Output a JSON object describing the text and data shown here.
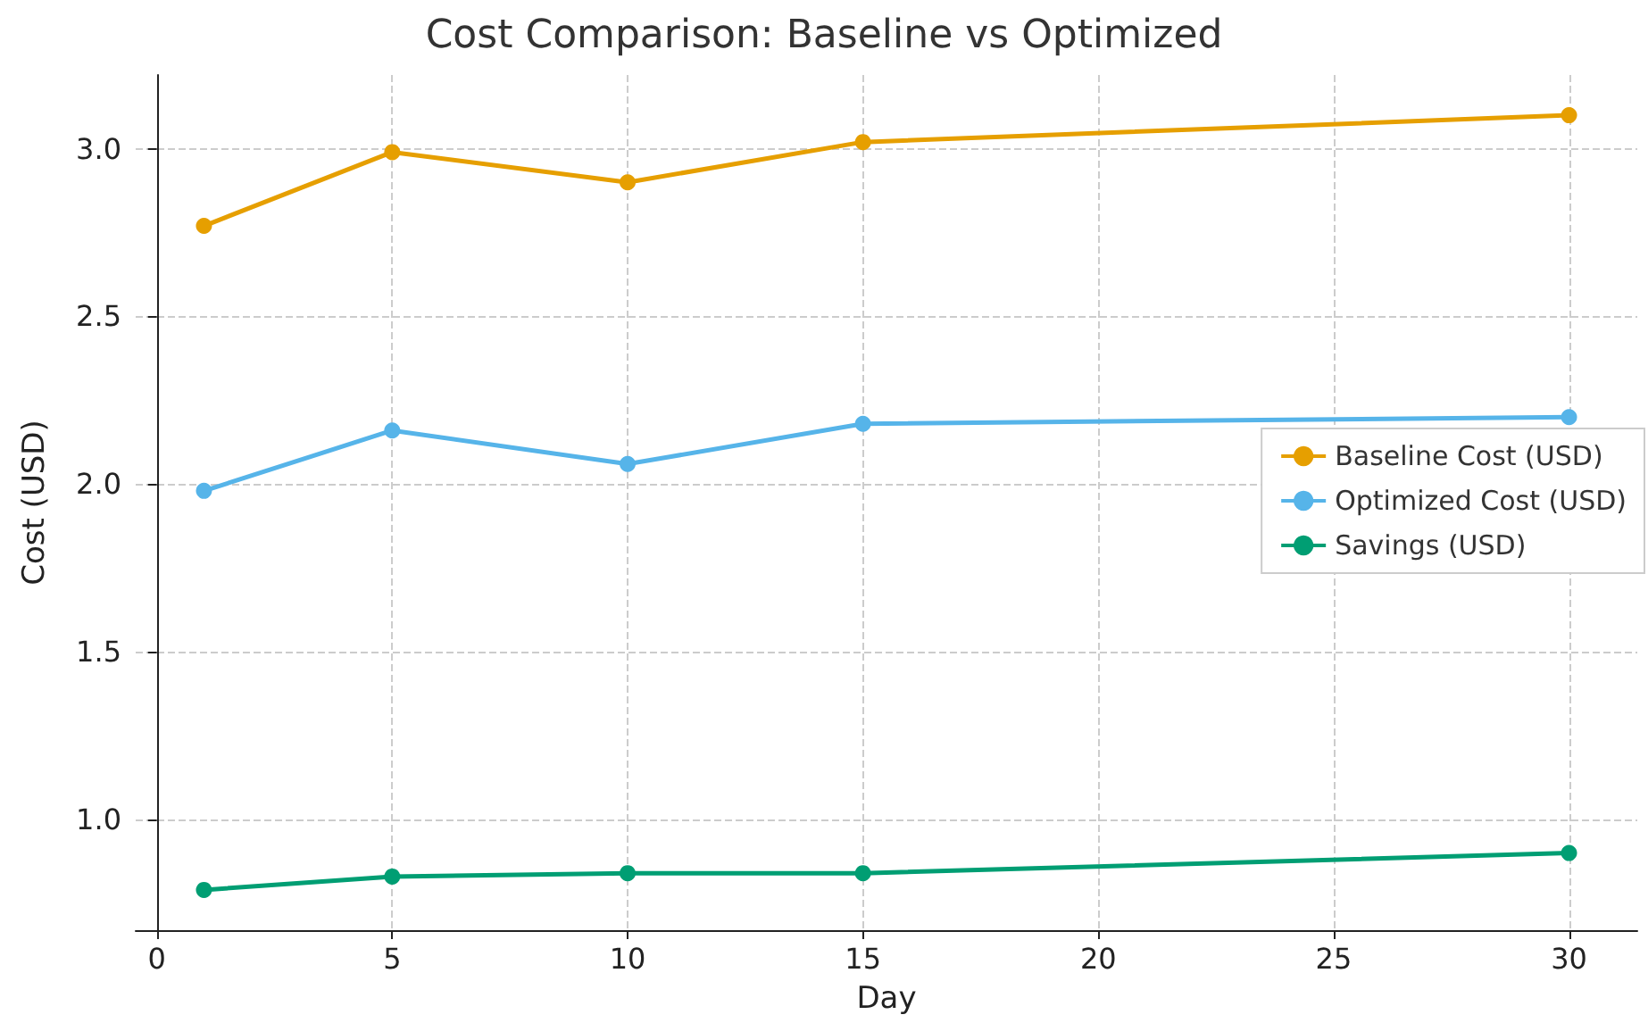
{
  "chart_data": {
    "type": "line",
    "title": "Cost Comparison: Baseline vs Optimized",
    "xlabel": "Day",
    "ylabel": "Cost (USD)",
    "x": [
      1,
      5,
      10,
      15,
      30
    ],
    "series": [
      {
        "name": "Baseline Cost (USD)",
        "color": "#e69f00",
        "values": [
          2.77,
          2.99,
          2.9,
          3.02,
          3.1
        ]
      },
      {
        "name": "Optimized Cost (USD)",
        "color": "#56b4e9",
        "values": [
          1.98,
          2.16,
          2.06,
          2.18,
          2.2
        ]
      },
      {
        "name": "Savings (USD)",
        "color": "#009e73",
        "values": [
          0.79,
          0.83,
          0.84,
          0.84,
          0.9
        ]
      }
    ],
    "xlim": [
      -0.45,
      31.45
    ],
    "xticks": [
      0,
      5,
      10,
      15,
      20,
      25,
      30
    ],
    "ylim": [
      0.67,
      3.22
    ],
    "yticks": [
      {
        "value": 1.0,
        "label": "1.0"
      },
      {
        "value": 1.5,
        "label": "1.5"
      },
      {
        "value": 2.0,
        "label": "2.0"
      },
      {
        "value": 2.5,
        "label": "2.5"
      },
      {
        "value": 3.0,
        "label": "3.0"
      }
    ],
    "grid": true,
    "legend": "right",
    "marker": "circle",
    "line_style": "solid"
  }
}
